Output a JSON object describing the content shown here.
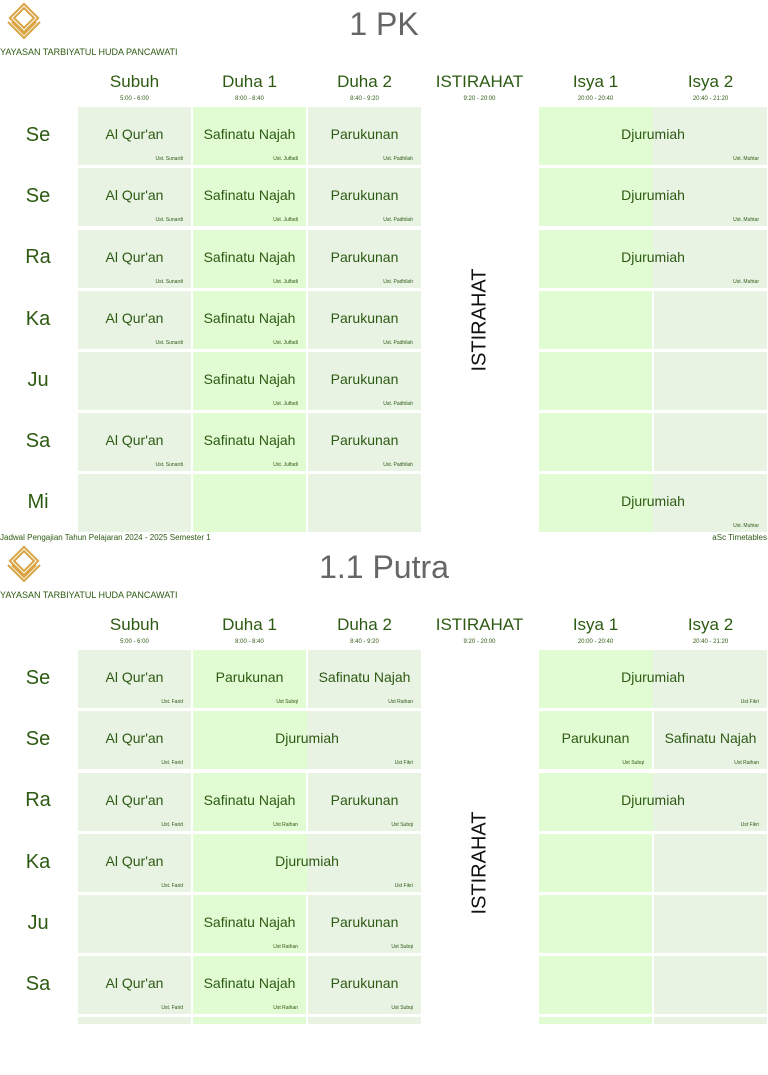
{
  "sections": [
    {
      "org": "YAYASAN TARBIYATUL HUDA PANCAWATI",
      "title": "1 PK",
      "columns": [
        {
          "name": "Subuh",
          "time": "5:00 - 6:00"
        },
        {
          "name": "Duha 1",
          "time": "8:00 - 8:40"
        },
        {
          "name": "Duha 2",
          "time": "8:40 - 9:20"
        },
        {
          "name": "ISTIRAHAT",
          "time": "9:20 - 20:00"
        },
        {
          "name": "Isya 1",
          "time": "20:00 - 20:40"
        },
        {
          "name": "Isya 2",
          "time": "20:40 - 21:20"
        }
      ],
      "break_label": "ISTIRAHAT",
      "days": [
        "Se",
        "Se",
        "Ra",
        "Ka",
        "Ju",
        "Sa",
        "Mi"
      ],
      "rows": [
        [
          {
            "subject": "Al Qur'an",
            "teacher": "Ust. Sunardi"
          },
          {
            "subject": "Safinatu Najah",
            "teacher": "Ust. Julfadi"
          },
          {
            "subject": "Parukunan",
            "teacher": "Ust. Padhilah"
          },
          {
            "subject": "Djurumiah",
            "teacher": "Ust. Muhtar"
          }
        ],
        [
          {
            "subject": "Al Qur'an",
            "teacher": "Ust. Sunardi"
          },
          {
            "subject": "Safinatu Najah",
            "teacher": "Ust. Julfadi"
          },
          {
            "subject": "Parukunan",
            "teacher": "Ust. Padhilah"
          },
          {
            "subject": "Djurumiah",
            "teacher": "Ust. Muhtar"
          }
        ],
        [
          {
            "subject": "Al Qur'an",
            "teacher": "Ust. Sunardi"
          },
          {
            "subject": "Safinatu Najah",
            "teacher": "Ust. Julfadi"
          },
          {
            "subject": "Parukunan",
            "teacher": "Ust. Padhilah"
          },
          {
            "subject": "Djurumiah",
            "teacher": "Ust. Muhtar"
          }
        ],
        [
          {
            "subject": "Al Qur'an",
            "teacher": "Ust. Sunardi"
          },
          {
            "subject": "Safinatu Najah",
            "teacher": "Ust. Julfadi"
          },
          {
            "subject": "Parukunan",
            "teacher": "Ust. Padhilah"
          }
        ],
        [
          {
            "subject": "Safinatu Najah",
            "teacher": "Ust. Julfadi"
          },
          {
            "subject": "Parukunan",
            "teacher": "Ust. Padhilah"
          }
        ],
        [
          {
            "subject": "Al Qur'an",
            "teacher": "Ust. Sunardi"
          },
          {
            "subject": "Safinatu Najah",
            "teacher": "Ust. Julfadi"
          },
          {
            "subject": "Parukunan",
            "teacher": "Ust. Padhilah"
          }
        ],
        [
          {
            "subject": "Djurumiah",
            "teacher": "Ust. Muhtar"
          }
        ]
      ],
      "footer_left": "Jadwal Pengajian Tahun Pelajaran 2024 - 2025 Semester 1",
      "footer_right": "aSc Timetables"
    },
    {
      "org": "YAYASAN TARBIYATUL HUDA PANCAWATI",
      "title": "1.1 Putra",
      "columns": [
        {
          "name": "Subuh",
          "time": "5:00 - 6:00"
        },
        {
          "name": "Duha 1",
          "time": "8:00 - 8:40"
        },
        {
          "name": "Duha 2",
          "time": "8:40 - 9:20"
        },
        {
          "name": "ISTIRAHAT",
          "time": "9:20 - 20:00"
        },
        {
          "name": "Isya 1",
          "time": "20:00 - 20:40"
        },
        {
          "name": "Isya 2",
          "time": "20:40 - 21:20"
        }
      ],
      "break_label": "ISTIRAHAT",
      "days": [
        "Se",
        "Se",
        "Ra",
        "Ka",
        "Ju",
        "Sa"
      ],
      "rows": [
        [
          {
            "subject": "Al Qur'an",
            "teacher": "Ust. Farid"
          },
          {
            "subject": "Parukunan",
            "teacher": "Ust Subqi"
          },
          {
            "subject": "Safinatu Najah",
            "teacher": "Ust Raihan"
          },
          {
            "subject": "Djurumiah",
            "teacher": "Ust Fikri"
          }
        ],
        [
          {
            "subject": "Al Qur'an",
            "teacher": "Ust. Farid"
          },
          {
            "subject": "Djurumiah",
            "teacher": "Ust Fikri"
          },
          {
            "subject": "Parukunan",
            "teacher": "Ust Subqi"
          },
          {
            "subject": "Safinatu Najah",
            "teacher": "Ust Raihan"
          }
        ],
        [
          {
            "subject": "Al Qur'an",
            "teacher": "Ust. Farid"
          },
          {
            "subject": "Safinatu Najah",
            "teacher": "Ust Raihan"
          },
          {
            "subject": "Parukunan",
            "teacher": "Ust Subqi"
          },
          {
            "subject": "Djurumiah",
            "teacher": "Ust Fikri"
          }
        ],
        [
          {
            "subject": "Al Qur'an",
            "teacher": "Ust. Farid"
          },
          {
            "subject": "Djurumiah",
            "teacher": "Ust Fikri"
          }
        ],
        [
          {
            "subject": "Safinatu Najah",
            "teacher": "Ust Raihan"
          },
          {
            "subject": "Parukunan",
            "teacher": "Ust Subqi"
          }
        ],
        [
          {
            "subject": "Al Qur'an",
            "teacher": "Ust. Farid"
          },
          {
            "subject": "Safinatu Najah",
            "teacher": "Ust Raihan"
          },
          {
            "subject": "Parukunan",
            "teacher": "Ust Subqi"
          }
        ]
      ]
    }
  ]
}
